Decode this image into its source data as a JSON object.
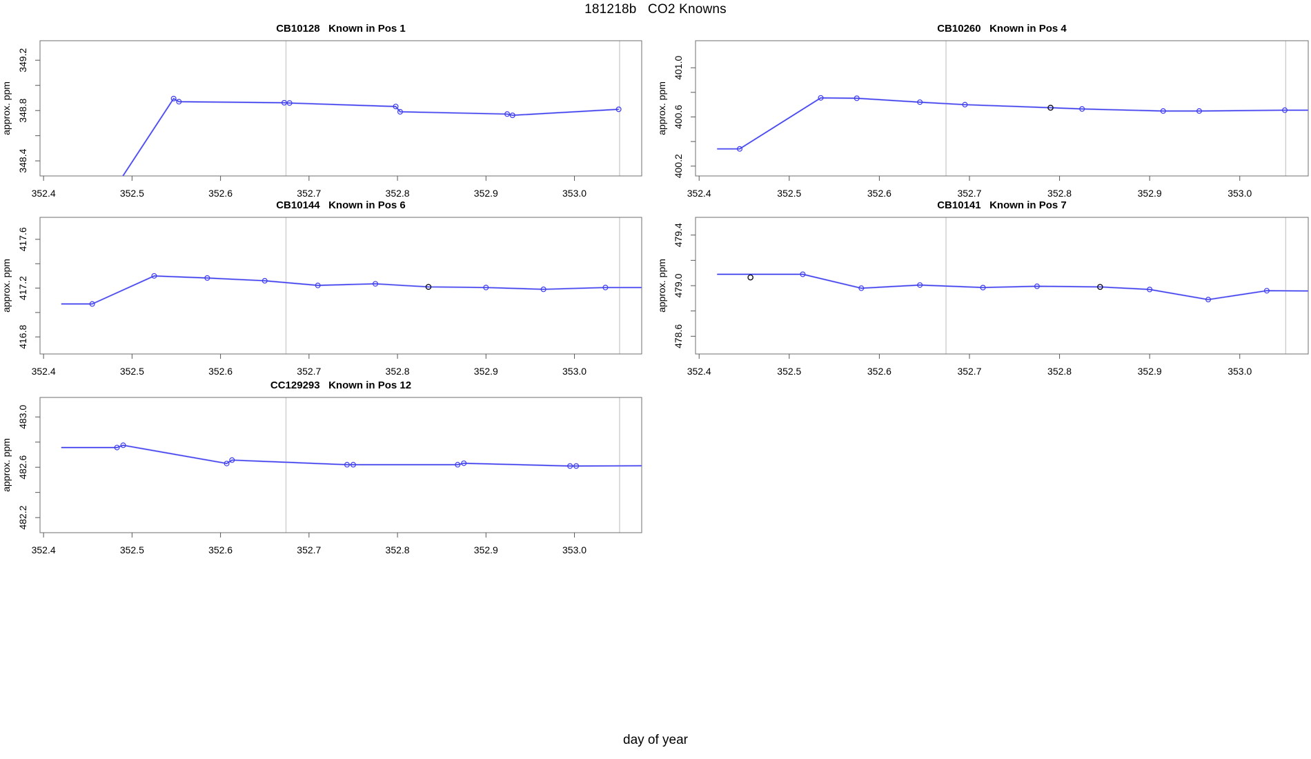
{
  "figure_title": "181218b   CO2 Knowns",
  "xlabel": "day of year",
  "colors": {
    "line_blue": "#3333ee",
    "line_halo": "#a9a9f7",
    "marker_blue": "#3d3dee",
    "marker_black": "#111122",
    "vline_gray": "#cdcdcd",
    "box_border": "#6e6e6e",
    "tick": "#555555"
  },
  "chart_data": [
    {
      "type": "line",
      "title": "CB10128   Known in Pos 1",
      "ylabel": "approx. ppm",
      "xlabel": "day of year",
      "grid": false,
      "legend": null,
      "xlim": [
        352.396,
        353.076
      ],
      "ylim": [
        348.28,
        349.355
      ],
      "x_ticks": [
        352.4,
        352.5,
        352.6,
        352.7,
        352.8,
        352.9,
        353.0
      ],
      "y_ticks": [
        348.4,
        348.6,
        348.8,
        349.0,
        349.2
      ],
      "y_tick_labels": [
        348.4,
        348.8,
        349.2
      ],
      "vlines": [
        352.674,
        353.051
      ],
      "line": [
        [
          352.445,
          347.8
        ],
        [
          352.547,
          348.895
        ],
        [
          352.553,
          348.87
        ],
        [
          352.672,
          348.862
        ],
        [
          352.678,
          348.86
        ],
        [
          352.798,
          348.832
        ],
        [
          352.803,
          348.79
        ],
        [
          352.924,
          348.772
        ],
        [
          352.93,
          348.762
        ],
        [
          353.05,
          348.81
        ]
      ],
      "points_blue": [
        [
          352.547,
          348.895
        ],
        [
          352.553,
          348.87
        ],
        [
          352.672,
          348.862
        ],
        [
          352.678,
          348.86
        ],
        [
          352.798,
          348.832
        ],
        [
          352.803,
          348.79
        ],
        [
          352.924,
          348.772
        ],
        [
          352.93,
          348.762
        ],
        [
          353.05,
          348.81
        ]
      ],
      "points_black": []
    },
    {
      "type": "line",
      "title": "CB10260   Known in Pos 4",
      "ylabel": "approx. ppm",
      "xlabel": "day of year",
      "grid": false,
      "legend": null,
      "xlim": [
        352.396,
        353.076
      ],
      "ylim": [
        400.12,
        401.22
      ],
      "x_ticks": [
        352.4,
        352.5,
        352.6,
        352.7,
        352.8,
        352.9,
        353.0
      ],
      "y_ticks": [
        400.2,
        400.4,
        400.6,
        400.8,
        401.0
      ],
      "y_tick_labels": [
        400.2,
        400.6,
        401.0
      ],
      "vlines": [
        352.674,
        353.051
      ],
      "line": [
        [
          352.42,
          400.34
        ],
        [
          352.445,
          400.34
        ],
        [
          352.535,
          400.755
        ],
        [
          352.575,
          400.752
        ],
        [
          352.645,
          400.72
        ],
        [
          352.695,
          400.7
        ],
        [
          352.79,
          400.675
        ],
        [
          352.825,
          400.665
        ],
        [
          352.915,
          400.648
        ],
        [
          352.955,
          400.648
        ],
        [
          353.05,
          400.655
        ],
        [
          353.076,
          400.655
        ]
      ],
      "points_blue": [
        [
          352.445,
          400.34
        ],
        [
          352.535,
          400.755
        ],
        [
          352.575,
          400.752
        ],
        [
          352.645,
          400.72
        ],
        [
          352.695,
          400.7
        ],
        [
          352.825,
          400.665
        ],
        [
          352.915,
          400.648
        ],
        [
          352.955,
          400.648
        ],
        [
          353.05,
          400.655
        ]
      ],
      "points_black": [
        [
          352.79,
          400.675
        ]
      ]
    },
    {
      "type": "line",
      "title": "CB10144   Known in Pos 6",
      "ylabel": "approx. ppm",
      "xlabel": "day of year",
      "grid": false,
      "legend": null,
      "xlim": [
        352.396,
        353.076
      ],
      "ylim": [
        416.66,
        417.78
      ],
      "x_ticks": [
        352.4,
        352.5,
        352.6,
        352.7,
        352.8,
        352.9,
        353.0
      ],
      "y_ticks": [
        416.8,
        417.0,
        417.2,
        417.4,
        417.6
      ],
      "y_tick_labels": [
        416.8,
        417.2,
        417.6
      ],
      "vlines": [
        352.674,
        353.051
      ],
      "line": [
        [
          352.42,
          417.07
        ],
        [
          352.455,
          417.07
        ],
        [
          352.525,
          417.3
        ],
        [
          352.585,
          417.283
        ],
        [
          352.65,
          417.26
        ],
        [
          352.71,
          417.222
        ],
        [
          352.775,
          417.235
        ],
        [
          352.835,
          417.21
        ],
        [
          352.9,
          417.205
        ],
        [
          352.965,
          417.19
        ],
        [
          353.035,
          417.205
        ],
        [
          353.076,
          417.205
        ]
      ],
      "points_blue": [
        [
          352.455,
          417.07
        ],
        [
          352.525,
          417.3
        ],
        [
          352.585,
          417.283
        ],
        [
          352.65,
          417.26
        ],
        [
          352.71,
          417.222
        ],
        [
          352.775,
          417.235
        ],
        [
          352.9,
          417.205
        ],
        [
          352.965,
          417.19
        ],
        [
          353.035,
          417.205
        ]
      ],
      "points_black": [
        [
          352.835,
          417.21
        ]
      ]
    },
    {
      "type": "line",
      "title": "CB10141   Known in Pos 7",
      "ylabel": "approx. ppm",
      "xlabel": "day of year",
      "grid": false,
      "legend": null,
      "xlim": [
        352.396,
        353.076
      ],
      "ylim": [
        478.46,
        479.54
      ],
      "x_ticks": [
        352.4,
        352.5,
        352.6,
        352.7,
        352.8,
        352.9,
        353.0
      ],
      "y_ticks": [
        478.6,
        478.8,
        479.0,
        479.2,
        479.4
      ],
      "y_tick_labels": [
        478.6,
        479.0,
        479.4
      ],
      "vlines": [
        352.674,
        353.051
      ],
      "line": [
        [
          352.42,
          479.09
        ],
        [
          352.515,
          479.09
        ],
        [
          352.58,
          478.98
        ],
        [
          352.645,
          479.005
        ],
        [
          352.715,
          478.985
        ],
        [
          352.775,
          478.995
        ],
        [
          352.845,
          478.99
        ],
        [
          352.9,
          478.97
        ],
        [
          352.965,
          478.89
        ],
        [
          353.03,
          478.96
        ],
        [
          353.076,
          478.958
        ]
      ],
      "points_blue": [
        [
          352.515,
          479.09
        ],
        [
          352.58,
          478.98
        ],
        [
          352.645,
          479.005
        ],
        [
          352.715,
          478.985
        ],
        [
          352.775,
          478.995
        ],
        [
          352.9,
          478.97
        ],
        [
          352.965,
          478.89
        ],
        [
          353.03,
          478.96
        ]
      ],
      "points_black": [
        [
          352.457,
          479.065
        ],
        [
          352.845,
          478.99
        ]
      ]
    },
    {
      "type": "line",
      "title": "CC129293   Known in Pos 12",
      "ylabel": "approx. ppm",
      "xlabel": "day of year",
      "grid": false,
      "legend": null,
      "xlim": [
        352.396,
        353.076
      ],
      "ylim": [
        482.08,
        483.155
      ],
      "x_ticks": [
        352.4,
        352.5,
        352.6,
        352.7,
        352.8,
        352.9,
        353.0
      ],
      "y_ticks": [
        482.2,
        482.4,
        482.6,
        482.8,
        483.0
      ],
      "y_tick_labels": [
        482.2,
        482.6,
        483.0
      ],
      "vlines": [
        352.674,
        353.051
      ],
      "line": [
        [
          352.42,
          482.757
        ],
        [
          352.483,
          482.757
        ],
        [
          352.49,
          482.775
        ],
        [
          352.607,
          482.63
        ],
        [
          352.613,
          482.657
        ],
        [
          352.743,
          482.62
        ],
        [
          352.75,
          482.62
        ],
        [
          352.868,
          482.62
        ],
        [
          352.875,
          482.632
        ],
        [
          352.995,
          482.61
        ],
        [
          353.002,
          482.61
        ],
        [
          353.076,
          482.612
        ]
      ],
      "points_blue": [
        [
          352.483,
          482.757
        ],
        [
          352.49,
          482.775
        ],
        [
          352.607,
          482.63
        ],
        [
          352.613,
          482.657
        ],
        [
          352.743,
          482.62
        ],
        [
          352.75,
          482.62
        ],
        [
          352.868,
          482.62
        ],
        [
          352.875,
          482.632
        ],
        [
          352.995,
          482.61
        ],
        [
          353.002,
          482.61
        ]
      ],
      "points_black": []
    }
  ]
}
